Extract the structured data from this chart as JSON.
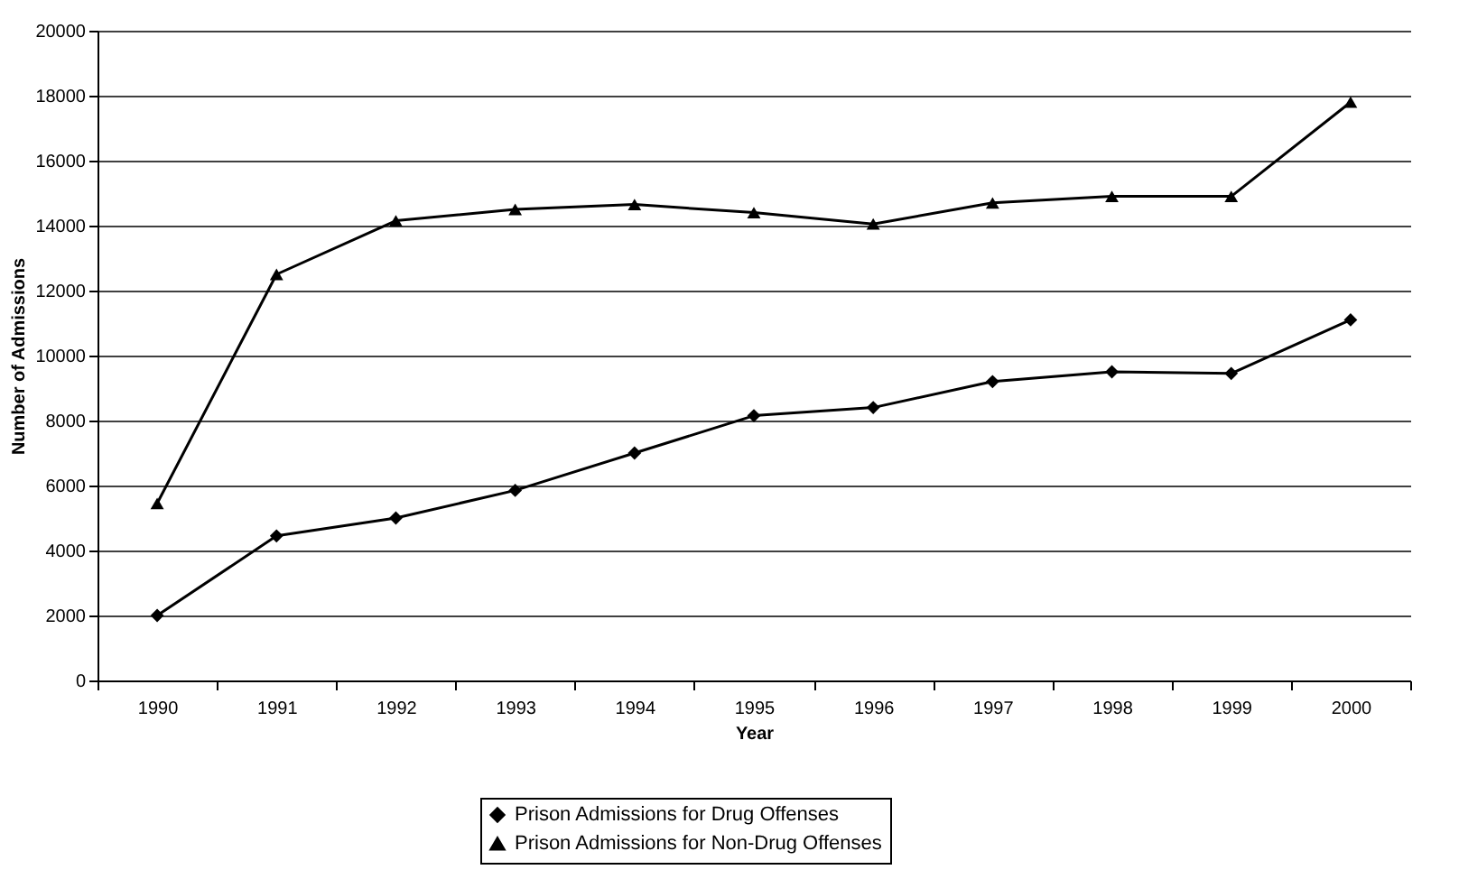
{
  "chart_data": {
    "type": "line",
    "xlabel": "Year",
    "ylabel": "Number of Admissions",
    "categories": [
      "1990",
      "1991",
      "1992",
      "1993",
      "1994",
      "1995",
      "1996",
      "1997",
      "1998",
      "1999",
      "2000"
    ],
    "series": [
      {
        "name": "Prison Admissions for Drug Offenses",
        "color": "#000000",
        "marker": "diamond",
        "values": [
          2000,
          4450,
          5000,
          5850,
          7000,
          8150,
          8400,
          9200,
          9500,
          9450,
          11100
        ]
      },
      {
        "name": "Prison Admissions for Non-Drug Offenses",
        "color": "#000000",
        "marker": "triangle",
        "values": [
          5450,
          12500,
          14150,
          14500,
          14650,
          14400,
          14050,
          14700,
          14900,
          14900,
          17800
        ]
      }
    ],
    "ylim": [
      0,
      20000
    ],
    "yticks": [
      0,
      2000,
      4000,
      6000,
      8000,
      10000,
      12000,
      14000,
      16000,
      18000,
      20000
    ],
    "grid": "y",
    "legend": "bottom",
    "line_style": "solid"
  }
}
